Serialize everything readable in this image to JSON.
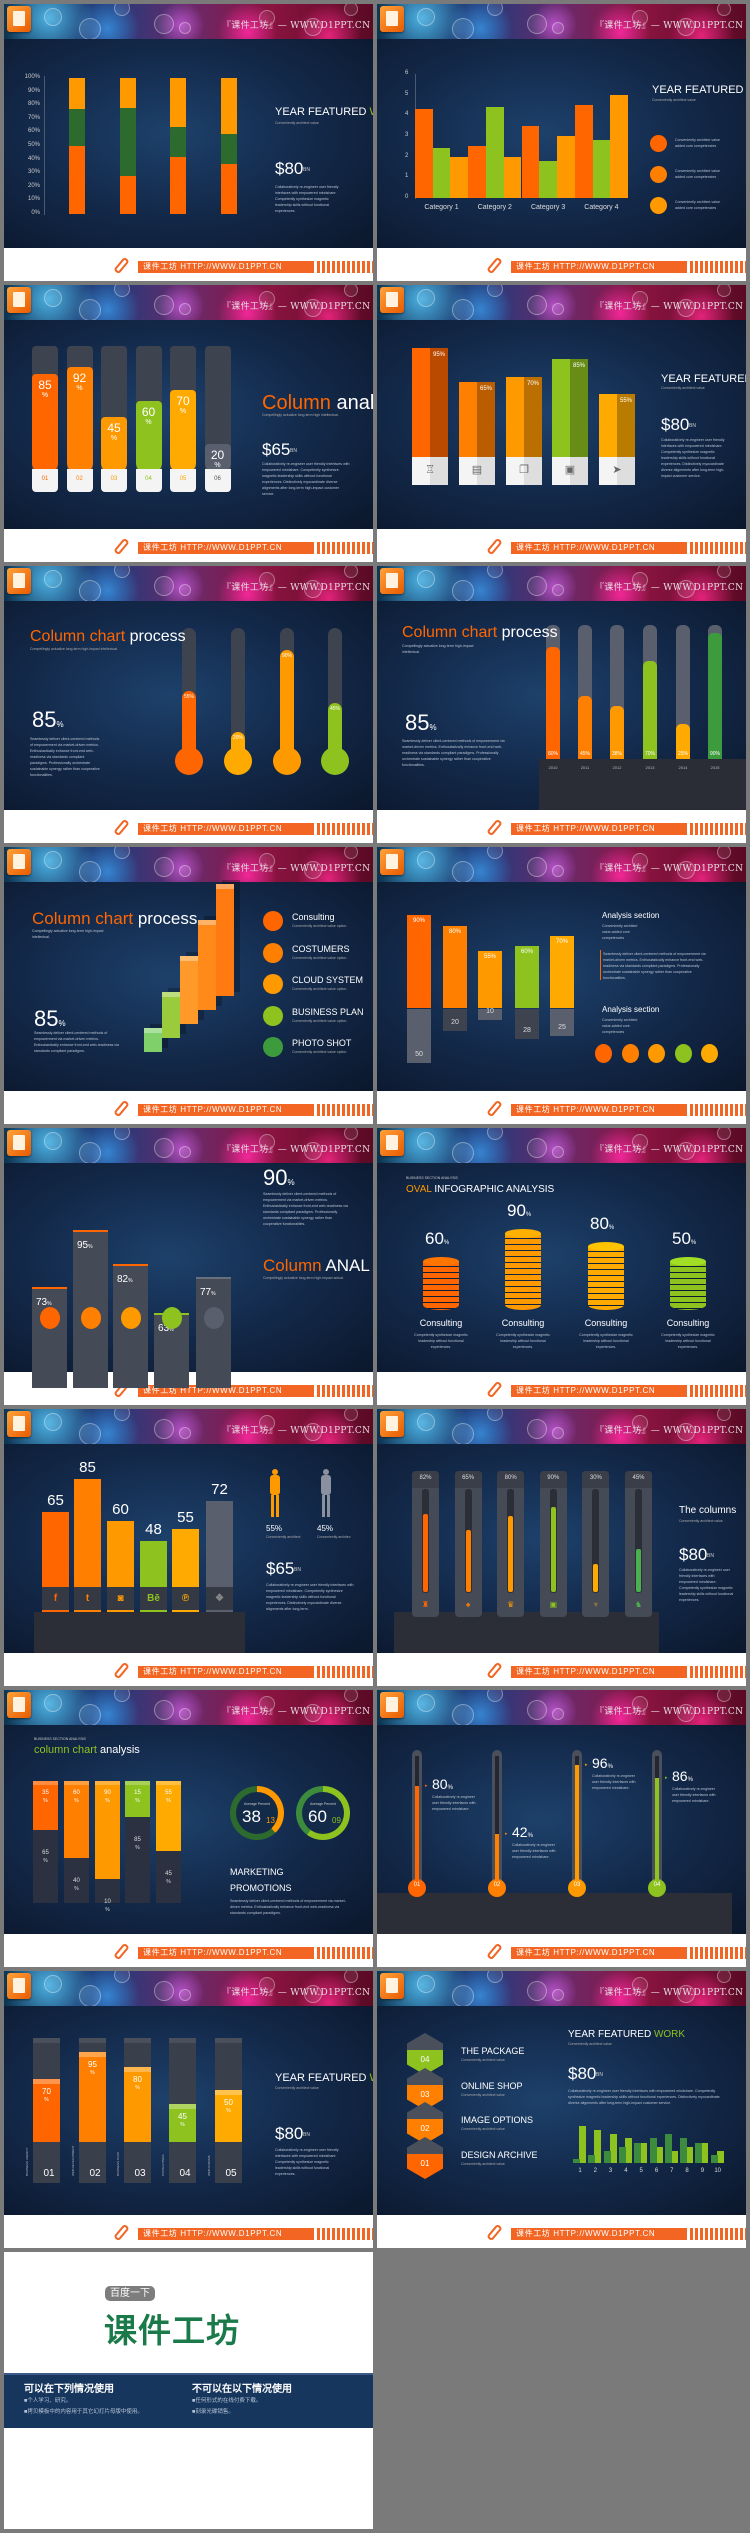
{
  "brand": {
    "watermark": "『课件工坊』— WWW.D1PPT.CN",
    "footer_text": "课件工坊 HTTP://WWW.D1PPT.CN"
  },
  "colors": {
    "orange": "#ff6600",
    "orange2": "#ff8000",
    "amber": "#ff9900",
    "yellow": "#ffaa00",
    "green": "#8dc21f",
    "dgreen": "#3d9b3d",
    "gray": "#4a4f5c",
    "navy": "#17365d",
    "brand_green": "#1a7a4a"
  },
  "slides": [
    {
      "title_a": "YEAR FEATURED ",
      "title_b": "WO",
      "subtitle": "Conveniently architect value",
      "amount": "$80",
      "unit": "BN",
      "para": "Collaboratively re-engineer user friendly interfaces with empowered mindshare. Competently synthesize magnetic leadership skills without functional experiences."
    },
    {
      "title_a": "YEAR FEATURED ",
      "title_b": "WO",
      "subtitle": "Conveniently architect value",
      "notes": [
        "Conveniently architect value added core competencies",
        "Conveniently architect value added core competencies",
        "Conveniently architect value added core competencies"
      ]
    },
    {
      "title_a": "Column ",
      "title_b": "analy",
      "subtitle": "Compellingly actualize long-term high intellectual.",
      "amount": "$65",
      "unit": "BN",
      "para": "Collaboratively re-engineer user friendly interfaces with empowered mindshare. Competently synthesize magnetic leadership skills without functional experiences. Distinctively myocardinate diverse alignments after long-term high-impact customer service."
    },
    {
      "title_a": "YEAR FEATURED W",
      "subtitle": "Conveniently architect value",
      "amount": "$80",
      "unit": "BN",
      "para": "Collaboratively re-engineer user friendly interfaces with empowered mindshare. Competently synthesize magnetic leadership skills without functional experiences. Distinctively myocardinate diverse alignments after long-term high-impact customer service."
    },
    {
      "title_a": "Column chart ",
      "title_b": "process",
      "subtitle": "Compellingly actualize long-term high-impact intellectual.",
      "big": "85",
      "big_unit": "%",
      "para": "Seamlessly deliver client-centered methods of empowerment via market-driven metrics. Enthusiastically enhance front-end web-readiness via standards compliant paradigms. Professionally orchestrate sustainable synergy rather than cooperative functionalities."
    },
    {
      "title_a": "Column chart ",
      "title_b": "process",
      "subtitle": "Compellingly actualize long-term high-impact intellectual.",
      "big": "85",
      "big_unit": "%",
      "para": "Seamlessly deliver client-centered methods of empowerment via market-driven metrics. Enthusiastically enhance front-end web-readiness via standards compliant paradigms. Professionally orchestrate sustainable synergy rather than cooperative functionalities."
    },
    {
      "title_a": "Column chart ",
      "title_b": "process",
      "subtitle": "Compellingly actualize long-term high-impact intellectual.",
      "big": "85",
      "big_unit": "%",
      "para": "Seamlessly deliver client-centered methods of empowerment via market-driven metrics. Enthusiastically enhance front-end web-readiness via standards compliant paradigms.",
      "items": [
        {
          "label": "Consulting",
          "sub": "Conveniently architect value option."
        },
        {
          "label": "COSTUMERS",
          "sub": "Conveniently architect value option."
        },
        {
          "label": "CLOUD SYSTEM",
          "sub": "Conveniently architect value option."
        },
        {
          "label": "BUSINESS PLAN",
          "sub": "Conveniently architect value option."
        },
        {
          "label": "PHOTO SHOT",
          "sub": "Conveniently architect value option."
        }
      ]
    },
    {
      "sections": [
        {
          "title": "Analysis section",
          "sub": "Conveniently architect value-added core competencies"
        },
        {
          "title": "Analysis section",
          "sub": "Conveniently architect value-added core competencies"
        }
      ],
      "para": "Seamlessly deliver client-centered methods of empowerment via market-driven metrics. Enthusiastically enhance front-end web-readiness via standards compliant paradigms. Professionally orchestrate sustainable synergy rather than cooperative functionalities."
    },
    {
      "big": "90",
      "big_unit": "%",
      "para": "Seamlessly deliver client-centered methods of empowerment via market-driven metrics. Enthusiastically enhance front-end web-readiness via standards compliant paradigms. Professionally orchestrate sustainable synergy rather than cooperative functionalities.",
      "title_a": "Column ",
      "title_b": "ANAL",
      "subtitle": "Compellingly actualize long-term high-impact actual."
    },
    {
      "kicker": "BUSINESS SECTION ANALYSIS",
      "title_a": "OVAL ",
      "title_b": "INFOGRAPHIC ANALYSIS",
      "desc": "Competently synthesize magnetic leadership without functional experiences."
    },
    {
      "figures": [
        {
          "value": "55%",
          "sub": "Conveniently architect"
        },
        {
          "value": "45%",
          "sub": "Conveniently architec"
        }
      ],
      "amount": "$65",
      "unit": "BN",
      "para": "Collaboratively re-engineer user friendly interfaces with empowered mindshare. Competently synthesize magnetic leadership skills without functional experiences. Distinctively myocardinate diverse alignments after long-term."
    },
    {
      "title_a": "The columns",
      "subtitle": "Conveniently architect value",
      "amount": "$80",
      "unit": "BN",
      "para": "Collaboratively re-engineer user friendly interfaces with empowered mindshare. Competently synthesize magnetic leadership skills without functional experiences."
    },
    {
      "kicker": "BUSINESS SECTION ANALYSIS",
      "title_a": "column chart ",
      "title_b": "analysis",
      "donuts": [
        {
          "label": "Average Percent",
          "value": "38",
          "sub": "13"
        },
        {
          "label": "Average Percent",
          "value": "60",
          "sub": "09"
        }
      ],
      "heading1": "MARKETING",
      "heading2": "PROMOTIONS",
      "para": "Seamlessly deliver client-centered methods of empowerment via market-driven metrics. Enthusiastically enhance front-end web-readiness via standards compliant paradigms."
    },
    {
      "para": "Collaboratively re-engineer user friendly interfaces with empowered mindshare."
    },
    {
      "title_a": "YEAR FEATURED ",
      "title_b": "WO",
      "subtitle": "Conveniently architect value",
      "amount": "$80",
      "unit": "BN",
      "para": "Collaboratively re-engineer user friendly interfaces with empowered mindshare. Competently synthesize magnetic leadership skills without functional experiences."
    },
    {
      "items": [
        {
          "label": "THE PACKAGE",
          "sub": "Conveniently architect value",
          "num": "04"
        },
        {
          "label": "ONLINE SHOP",
          "sub": "Conveniently architect value",
          "num": "03"
        },
        {
          "label": "IMAGE OPTIONS",
          "sub": "Conveniently architect value",
          "num": "02"
        },
        {
          "label": "DESIGN ARCHIVE",
          "sub": "Conveniently architect value",
          "num": "01"
        }
      ],
      "title_a": "YEAR FEATURED ",
      "title_b": "WORK",
      "subtitle": "Conveniently architect value",
      "amount": "$80",
      "unit": "BN",
      "para": "Collaboratively re-engineer user friendly interfaces with empowered mindshare. Competently synthesize magnetic leadership skills without functional experiences. Distinctively myocardinate diverse alignments after long-term high-impact customer service."
    }
  ],
  "chart_data": [
    {
      "type": "bar",
      "stacked": true,
      "percent": true,
      "yticks": [
        "0%",
        "10%",
        "20%",
        "30%",
        "40%",
        "50%",
        "60%",
        "70%",
        "80%",
        "90%",
        "100%"
      ],
      "ylim": [
        0,
        100
      ],
      "series": [
        {
          "name": "Series 1",
          "values": [
            50,
            28,
            42,
            37
          ],
          "color": "#ff6600"
        },
        {
          "name": "Series 2",
          "values": [
            27,
            50,
            22,
            22
          ],
          "color": "#2d6a2e"
        },
        {
          "name": "Series 3",
          "values": [
            23,
            22,
            36,
            41
          ],
          "color": "#ff9900"
        }
      ]
    },
    {
      "type": "bar",
      "categories": [
        "Category 1",
        "Category 2",
        "Category 3",
        "Category 4"
      ],
      "yticks": [
        "0",
        "1",
        "2",
        "3",
        "4",
        "5",
        "6"
      ],
      "ylim": [
        0,
        6
      ],
      "series": [
        {
          "name": "Series 1",
          "values": [
            4.3,
            2.5,
            3.5,
            4.5
          ],
          "color": "#ff6600"
        },
        {
          "name": "Series 2",
          "values": [
            2.4,
            4.4,
            1.8,
            2.8
          ],
          "color": "#8dc21f"
        },
        {
          "name": "Series 3",
          "values": [
            2.0,
            2.0,
            3.0,
            5.0
          ],
          "color": "#ff9900"
        }
      ]
    },
    {
      "type": "bar",
      "categories": [
        "01",
        "02",
        "03",
        "04",
        "05",
        "06"
      ],
      "values": [
        85,
        92,
        45,
        60,
        70,
        20
      ],
      "labels": [
        "85",
        "92",
        "45",
        "60",
        "70",
        "20"
      ],
      "unit": "%"
    },
    {
      "type": "bar",
      "values": [
        95,
        65,
        70,
        85,
        55
      ],
      "labels": [
        "95%",
        "65%",
        "70%",
        "85%",
        "55%"
      ]
    },
    {
      "type": "bar",
      "values": [
        55,
        20,
        90,
        45
      ],
      "labels": [
        "55%",
        "20%",
        "90%",
        "45%"
      ]
    },
    {
      "type": "bar",
      "categories": [
        "2010",
        "2011",
        "2012",
        "2013",
        "2014",
        "2015"
      ],
      "values": [
        80,
        45,
        38,
        70,
        25,
        90
      ],
      "labels": [
        "80%",
        "45%",
        "38%",
        "70%",
        "25%",
        "90%"
      ]
    },
    {
      "type": "bar",
      "values": [
        1,
        2,
        3,
        4,
        5
      ]
    },
    {
      "type": "bar",
      "values_top": [
        90,
        80,
        55,
        60,
        70
      ],
      "labels_top": [
        "90%",
        "80%",
        "55%",
        "60%",
        "70%"
      ],
      "values_bottom": [
        50,
        20,
        10,
        28,
        25
      ],
      "labels_bottom": [
        "50",
        "20",
        "10",
        "28",
        "25"
      ]
    },
    {
      "type": "bar",
      "values": [
        73,
        95,
        82,
        63,
        77
      ],
      "labels": [
        "73",
        "95",
        "82",
        "63",
        "77"
      ],
      "unit": "%"
    },
    {
      "type": "bar",
      "categories": [
        "Consulting",
        "Consulting",
        "Consulting",
        "Consulting"
      ],
      "values": [
        60,
        90,
        80,
        50
      ],
      "labels": [
        "60",
        "90",
        "80",
        "50"
      ],
      "unit": "%"
    },
    {
      "type": "bar",
      "categories": [
        "facebook",
        "twitter",
        "instagram",
        "behance",
        "pinterest",
        "dropbox"
      ],
      "icons": [
        "f",
        "t",
        "◙",
        "Bē",
        "℗",
        "❖"
      ],
      "values": [
        65,
        85,
        60,
        48,
        55,
        72
      ],
      "labels": [
        "65",
        "85",
        "60",
        "48",
        "55",
        "72"
      ]
    },
    {
      "type": "bar",
      "values": [
        82,
        65,
        80,
        90,
        30,
        45
      ],
      "labels": [
        "82%",
        "65%",
        "80%",
        "90%",
        "30%",
        "45%"
      ]
    },
    {
      "type": "bar",
      "stacked": true,
      "values_top": [
        35,
        60,
        90,
        15,
        55
      ],
      "labels_top": [
        "35",
        "60",
        "90",
        "15",
        "55"
      ],
      "values_bottom": [
        65,
        40,
        10,
        85,
        45
      ],
      "labels_bottom": [
        "65",
        "40",
        "10",
        "85",
        "45"
      ],
      "unit": "%",
      "donut_values": [
        38,
        60
      ]
    },
    {
      "type": "bar",
      "categories": [
        "01",
        "02",
        "03",
        "04"
      ],
      "values": [
        80,
        42,
        96,
        86
      ],
      "labels": [
        "80",
        "42",
        "96",
        "86"
      ],
      "unit": "%"
    },
    {
      "type": "bar",
      "categories": [
        "BUSINESS AGENCY",
        "WEB DEVELOPMENT",
        "BUSINESS PLAN",
        "CONSULTINGS",
        "WEB FORUMS"
      ],
      "numbers": [
        "01",
        "02",
        "03",
        "04",
        "05"
      ],
      "values": [
        70,
        95,
        80,
        45,
        50
      ],
      "labels": [
        "70",
        "95",
        "80",
        "45",
        "50"
      ],
      "unit": "%"
    },
    {
      "type": "bar",
      "categories": [
        "1",
        "2",
        "3",
        "4",
        "5",
        "6",
        "7",
        "8",
        "9",
        "10"
      ],
      "series": [
        {
          "name": "light",
          "values": [
            9,
            8,
            7,
            6,
            5,
            4,
            3,
            4,
            5,
            3
          ],
          "color": "#8dc21f"
        },
        {
          "name": "dark",
          "values": [
            1,
            2,
            3,
            4,
            5,
            6,
            7,
            6,
            5,
            2
          ],
          "color": "#3d8b3d"
        }
      ]
    }
  ],
  "end_slide": {
    "badge": "百度一下",
    "logo_text": "课件工坊",
    "allowed_title": "可以在下列情况使用",
    "allowed": [
      "■个人学习、研究。",
      "■拷贝模板中的内容用于其它幻灯片母版中使用。"
    ],
    "forbidden_title": "不可以在以下情况使用",
    "forbidden": [
      "■任何形式的在线付费下载。",
      "■刻录光碟销售。"
    ]
  }
}
